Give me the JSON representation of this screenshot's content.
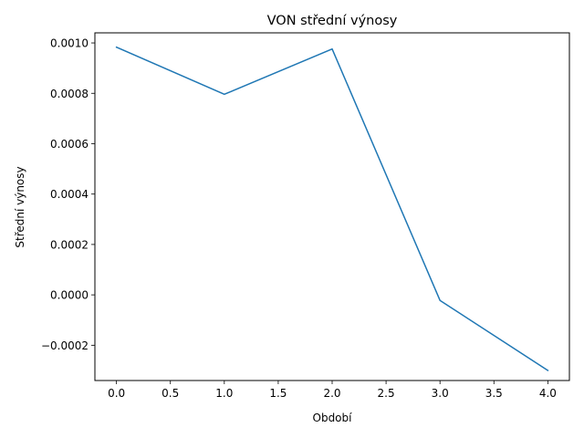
{
  "chart_data": {
    "type": "line",
    "title": "VON střední výnosy",
    "xlabel": "Období",
    "ylabel": "Střední výnosy",
    "x": [
      0,
      1,
      2,
      3,
      4
    ],
    "series": [
      {
        "values": [
          0.000983,
          0.000796,
          0.000976,
          -2.2e-05,
          -0.0003
        ],
        "color": "#1f77b4"
      }
    ],
    "xlim": [
      -0.2,
      4.2
    ],
    "ylim": [
      -0.00034,
      0.00104
    ],
    "xticks": [
      0,
      0.5,
      1,
      1.5,
      2,
      2.5,
      3,
      3.5,
      4
    ],
    "xtick_labels": [
      "0.0",
      "0.5",
      "1.0",
      "1.5",
      "2.0",
      "2.5",
      "3.0",
      "3.5",
      "4.0"
    ],
    "yticks": [
      -0.0002,
      0,
      0.0002,
      0.0004,
      0.0006,
      0.0008,
      0.001
    ],
    "ytick_labels": [
      "−0.0002",
      "0.0000",
      "0.0002",
      "0.0004",
      "0.0006",
      "0.0008",
      "0.0010"
    ],
    "grid": false,
    "legend": "none"
  }
}
